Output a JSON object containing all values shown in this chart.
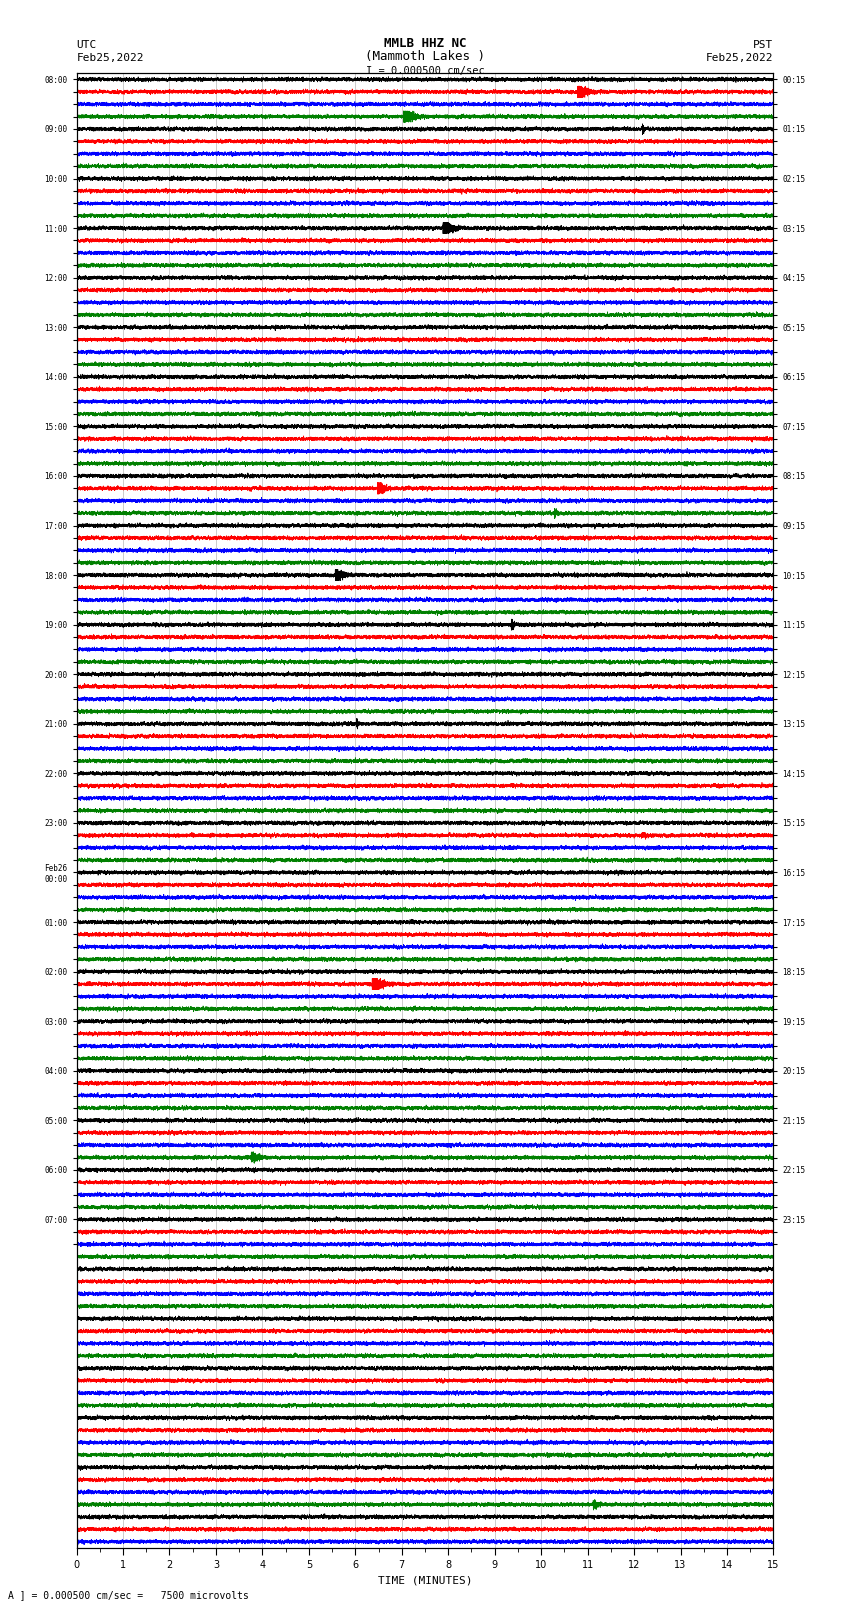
{
  "title_line1": "MMLB HHZ NC",
  "title_line2": "(Mammoth Lakes )",
  "title_line3": "I = 0.000500 cm/sec",
  "left_header_line1": "UTC",
  "left_header_line2": "Feb25,2022",
  "right_header_line1": "PST",
  "right_header_line2": "Feb25,2022",
  "xlabel": "TIME (MINUTES)",
  "footer": "A ] = 0.000500 cm/sec =   7500 microvolts",
  "utc_times": [
    "08:00",
    "",
    "",
    "",
    "09:00",
    "",
    "",
    "",
    "10:00",
    "",
    "",
    "",
    "11:00",
    "",
    "",
    "",
    "12:00",
    "",
    "",
    "",
    "13:00",
    "",
    "",
    "",
    "14:00",
    "",
    "",
    "",
    "15:00",
    "",
    "",
    "",
    "16:00",
    "",
    "",
    "",
    "17:00",
    "",
    "",
    "",
    "18:00",
    "",
    "",
    "",
    "19:00",
    "",
    "",
    "",
    "20:00",
    "",
    "",
    "",
    "21:00",
    "",
    "",
    "",
    "22:00",
    "",
    "",
    "",
    "23:00",
    "",
    "",
    "",
    "Feb26\n00:00",
    "",
    "",
    "",
    "01:00",
    "",
    "",
    "",
    "02:00",
    "",
    "",
    "",
    "03:00",
    "",
    "",
    "",
    "04:00",
    "",
    "",
    "",
    "05:00",
    "",
    "",
    "",
    "06:00",
    "",
    "",
    "",
    "07:00",
    "",
    ""
  ],
  "pst_times": [
    "00:15",
    "",
    "",
    "",
    "01:15",
    "",
    "",
    "",
    "02:15",
    "",
    "",
    "",
    "03:15",
    "",
    "",
    "",
    "04:15",
    "",
    "",
    "",
    "05:15",
    "",
    "",
    "",
    "06:15",
    "",
    "",
    "",
    "07:15",
    "",
    "",
    "",
    "08:15",
    "",
    "",
    "",
    "09:15",
    "",
    "",
    "",
    "10:15",
    "",
    "",
    "",
    "11:15",
    "",
    "",
    "",
    "12:15",
    "",
    "",
    "",
    "13:15",
    "",
    "",
    "",
    "14:15",
    "",
    "",
    "",
    "15:15",
    "",
    "",
    "",
    "16:15",
    "",
    "",
    "",
    "17:15",
    "",
    "",
    "",
    "18:15",
    "",
    "",
    "",
    "19:15",
    "",
    "",
    "",
    "20:15",
    "",
    "",
    "",
    "21:15",
    "",
    "",
    "",
    "22:15",
    "",
    "",
    "",
    "23:15",
    "",
    ""
  ],
  "colors_cycle": [
    "black",
    "red",
    "blue",
    "green"
  ],
  "num_traces": 119,
  "trace_duration_minutes": 15,
  "sample_rate": 50,
  "amplitude_scale": 0.06,
  "background_color": "white",
  "trace_linewidth": 0.5,
  "fig_width": 8.5,
  "fig_height": 16.13,
  "dpi": 100
}
